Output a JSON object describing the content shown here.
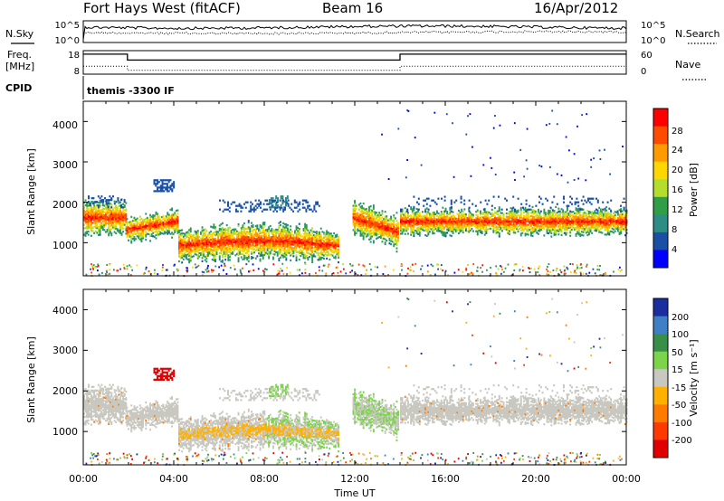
{
  "header": {
    "station": "Fort Hays West (fitACF)",
    "beam": "Beam 16",
    "date": "16/Apr/2012"
  },
  "aux": {
    "nsky_label": "N.Sky",
    "nsearch_label": "N.Search",
    "noise_ticks": [
      "10^5",
      "10^0"
    ],
    "noise_right_ticks": [
      "10^5",
      "10^0"
    ],
    "freq_label": "Freq.",
    "freq_unit": "[MHz]",
    "freq_ticks": [
      "18",
      "8"
    ],
    "nave_label": "Nave",
    "nave_ticks": [
      "60",
      "0"
    ],
    "cpid_label": "CPID",
    "cpid_text": "themis -3300 IF"
  },
  "chart_data": [
    {
      "type": "line",
      "name": "noise",
      "ylabel": "",
      "series": [
        {
          "name": "N.Sky",
          "style": "solid"
        },
        {
          "name": "N.Search",
          "style": "dotted"
        }
      ]
    },
    {
      "type": "line",
      "name": "frequency-nave",
      "x": [
        0,
        1.95,
        1.95,
        14,
        14,
        24
      ],
      "freq_mhz": [
        16.5,
        16.5,
        14,
        14,
        16.5,
        16.5
      ],
      "nave": [
        20,
        20,
        10,
        10,
        20,
        20
      ],
      "ylim_freq": [
        8,
        18
      ],
      "ylim_nave": [
        0,
        60
      ]
    },
    {
      "type": "heatmap",
      "name": "power",
      "ylabel": "Slant Range [km]",
      "yticks": [
        "4000",
        "3000",
        "2000",
        "1000"
      ],
      "ylim": [
        180,
        4500
      ],
      "xlim": [
        0,
        24
      ],
      "colorbar_label": "Power [dB]",
      "colorbar_ticks": [
        "28",
        "24",
        "20",
        "16",
        "12",
        "8",
        "4"
      ],
      "colorbar_colors": [
        "#ff0000",
        "#ff4b00",
        "#ff9a00",
        "#ffd700",
        "#b5dd2c",
        "#2f9e46",
        "#2d8c84",
        "#1a4fa6",
        "#0000ff"
      ],
      "bands": [
        {
          "t0": 0,
          "t1": 1.9,
          "center_km": 1650,
          "width_km": 200
        },
        {
          "t0": 1.9,
          "t1": 4.2,
          "center_km": 1450,
          "width_km": 150
        },
        {
          "t0": 4.2,
          "t1": 11.3,
          "center_km": 1000,
          "width_km": 200
        },
        {
          "t0": 11.9,
          "t1": 13.9,
          "center_km": 1300,
          "width_km": 200
        },
        {
          "t0": 14,
          "t1": 24,
          "center_km": 1550,
          "width_km": 150
        }
      ]
    },
    {
      "type": "heatmap",
      "name": "velocity",
      "ylabel": "Slant Range [km]",
      "yticks": [
        "4000",
        "3000",
        "2000",
        "1000"
      ],
      "ylim": [
        180,
        4500
      ],
      "xlim": [
        0,
        24
      ],
      "xticks": [
        "00:00",
        "04:00",
        "08:00",
        "12:00",
        "16:00",
        "20:00",
        "00:00"
      ],
      "xlabel": "Time UT",
      "colorbar_label": "Velocity [m s⁻¹]",
      "colorbar_ticks": [
        "200",
        "100",
        "50",
        "15",
        "-15",
        "-50",
        "-100",
        "-200"
      ],
      "colorbar_colors": [
        "#1a2ea0",
        "#3f7fc6",
        "#3a8f48",
        "#7bd44a",
        "#c8c8c0",
        "#ffb000",
        "#ff7b00",
        "#ff3a00",
        "#e00000"
      ]
    }
  ]
}
